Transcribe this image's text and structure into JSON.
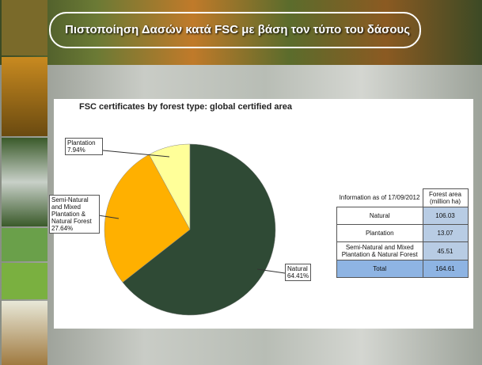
{
  "header": {
    "title": "Πιστοποίηση Δασών κατά FSC με βάση τον τύπο του δάσους"
  },
  "chart_data": {
    "type": "pie",
    "title": "FSC certificates by forest type: global certified area",
    "categories": [
      "Natural",
      "Semi-Natural and Mixed Plantation & Natural Forest",
      "Plantation"
    ],
    "values": [
      64.41,
      27.64,
      7.94
    ],
    "value_labels": [
      "64.41%",
      "27.64%",
      "7.94%"
    ],
    "colors": [
      "#2f4a35",
      "#ffb000",
      "#ffff99"
    ]
  },
  "table": {
    "header": [
      "Information as of 17/09/2012",
      "Forest area (million ha)"
    ],
    "rows": [
      [
        "Natural",
        106.03
      ],
      [
        "Plantation",
        13.07
      ],
      [
        "Semi-Natural and Mixed Plantation & Natural Forest",
        45.51
      ],
      [
        "Total",
        164.61
      ]
    ]
  }
}
